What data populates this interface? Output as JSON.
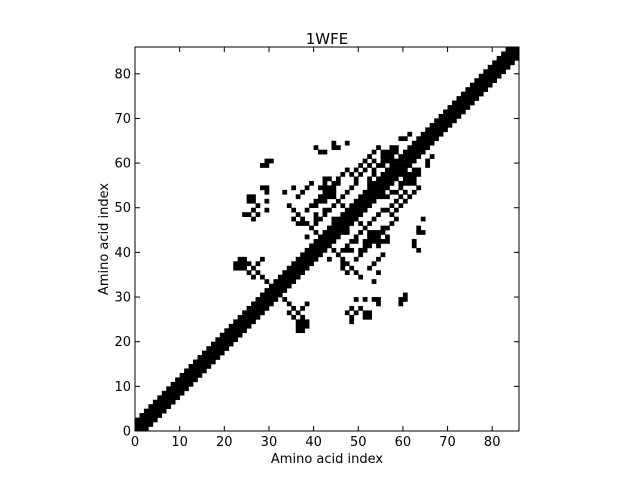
{
  "chart_data": {
    "type": "heatmap",
    "title": "1WFE",
    "xlabel": "Amino acid index",
    "ylabel": "Amino acid index",
    "xlim": [
      0,
      86
    ],
    "ylim": [
      0,
      86
    ],
    "xticks": [
      0,
      10,
      20,
      30,
      40,
      50,
      60,
      70,
      80
    ],
    "yticks": [
      0,
      10,
      20,
      30,
      40,
      50,
      60,
      70,
      80
    ],
    "grid": false,
    "cell_color": "#000000",
    "background_color": "#ffffff",
    "diagonal_band": {
      "from": 0,
      "to": 85,
      "half_width": 2
    },
    "contact_cells": [
      [
        20,
        21
      ],
      [
        21,
        22
      ],
      [
        21,
        23
      ],
      [
        22,
        22
      ],
      [
        22,
        23
      ],
      [
        23,
        24
      ],
      [
        24,
        25
      ],
      [
        25,
        26
      ],
      [
        26,
        27
      ],
      [
        27,
        28
      ],
      [
        29,
        30
      ],
      [
        30,
        31
      ],
      [
        31,
        32
      ],
      [
        32,
        30
      ],
      [
        31,
        29
      ],
      [
        30,
        28
      ],
      [
        28,
        27
      ],
      [
        33,
        29
      ],
      [
        34,
        28
      ],
      [
        35,
        27
      ],
      [
        36,
        26
      ],
      [
        37,
        25
      ],
      [
        38,
        24
      ],
      [
        38,
        23
      ],
      [
        37,
        23
      ],
      [
        36,
        22
      ],
      [
        36,
        24
      ],
      [
        35,
        25
      ],
      [
        34,
        26
      ],
      [
        25,
        35
      ],
      [
        26,
        36
      ],
      [
        27,
        37
      ],
      [
        28,
        38
      ],
      [
        23,
        36
      ],
      [
        24,
        37
      ],
      [
        24,
        38
      ],
      [
        22,
        37
      ],
      [
        24,
        48
      ],
      [
        25,
        48
      ],
      [
        26,
        49
      ],
      [
        26,
        47
      ],
      [
        27,
        48
      ],
      [
        29,
        49
      ],
      [
        30,
        60
      ],
      [
        29,
        59
      ],
      [
        29,
        53
      ],
      [
        29,
        51
      ],
      [
        39,
        45
      ],
      [
        40,
        46
      ],
      [
        41,
        47
      ],
      [
        42,
        48
      ],
      [
        43,
        49
      ],
      [
        44,
        50
      ],
      [
        45,
        51
      ],
      [
        46,
        52
      ],
      [
        47,
        53
      ],
      [
        48,
        54
      ],
      [
        49,
        55
      ],
      [
        43,
        41
      ],
      [
        44,
        40
      ],
      [
        45,
        39
      ],
      [
        46,
        38
      ],
      [
        47,
        37
      ],
      [
        48,
        36
      ],
      [
        49,
        35
      ],
      [
        50,
        34
      ],
      [
        42,
        40
      ],
      [
        41,
        39
      ],
      [
        43,
        38
      ],
      [
        38,
        49
      ],
      [
        39,
        50
      ],
      [
        40,
        51
      ],
      [
        41,
        52
      ],
      [
        42,
        53
      ],
      [
        43,
        54
      ],
      [
        44,
        55
      ],
      [
        45,
        56
      ],
      [
        46,
        57
      ],
      [
        47,
        58
      ],
      [
        50,
        40
      ],
      [
        51,
        41
      ],
      [
        52,
        42
      ],
      [
        53,
        43
      ],
      [
        54,
        44
      ],
      [
        36,
        52
      ],
      [
        37,
        53
      ],
      [
        38,
        54
      ],
      [
        48,
        57
      ],
      [
        49,
        58
      ],
      [
        50,
        59
      ],
      [
        51,
        60
      ],
      [
        52,
        61
      ],
      [
        53,
        62
      ],
      [
        54,
        63
      ],
      [
        53,
        60
      ],
      [
        52,
        59
      ],
      [
        51,
        58
      ],
      [
        50,
        57
      ],
      [
        49,
        56
      ],
      [
        55,
        59
      ],
      [
        56,
        60
      ],
      [
        57,
        61
      ],
      [
        58,
        62
      ],
      [
        59,
        60
      ],
      [
        58,
        58
      ],
      [
        57,
        57
      ],
      [
        59,
        58
      ],
      [
        60,
        57
      ],
      [
        61,
        56
      ],
      [
        62,
        55
      ],
      [
        60,
        61
      ],
      [
        61,
        62
      ],
      [
        62,
        60
      ],
      [
        63,
        61
      ],
      [
        56,
        58
      ],
      [
        55,
        57
      ],
      [
        55,
        61
      ],
      [
        56,
        62
      ],
      [
        57,
        63
      ],
      [
        58,
        59
      ],
      [
        59,
        57
      ],
      [
        60,
        56
      ],
      [
        40,
        63
      ],
      [
        41,
        62
      ],
      [
        42,
        62
      ],
      [
        44,
        63
      ],
      [
        45,
        63
      ],
      [
        41,
        54
      ],
      [
        42,
        55
      ],
      [
        42,
        56
      ],
      [
        43,
        56
      ],
      [
        39,
        55
      ],
      [
        44,
        52
      ],
      [
        45,
        51
      ],
      [
        46,
        48
      ],
      [
        47,
        44
      ],
      [
        50,
        46
      ],
      [
        49,
        50
      ],
      [
        52,
        52
      ],
      [
        53,
        52
      ],
      [
        54,
        53
      ],
      [
        55,
        52
      ],
      [
        56,
        52
      ],
      [
        57,
        53
      ],
      [
        58,
        53
      ],
      [
        59,
        54
      ],
      [
        60,
        55
      ],
      [
        51,
        26
      ],
      [
        52,
        26
      ],
      [
        51,
        25
      ],
      [
        52,
        25
      ],
      [
        50,
        27
      ],
      [
        54,
        28
      ],
      [
        54,
        29
      ],
      [
        54,
        35
      ],
      [
        53,
        33
      ],
      [
        59,
        28
      ],
      [
        59,
        29
      ],
      [
        60,
        29
      ],
      [
        46,
        38
      ],
      [
        47,
        40
      ],
      [
        48,
        40
      ],
      [
        49,
        42
      ],
      [
        51,
        42
      ],
      [
        52,
        43
      ],
      [
        53,
        44
      ],
      [
        54,
        42
      ],
      [
        55,
        45
      ],
      [
        63,
        44
      ],
      [
        64,
        44
      ],
      [
        62,
        42
      ],
      [
        64,
        47
      ],
      [
        36,
        46
      ],
      [
        37,
        46
      ],
      [
        35,
        47
      ],
      [
        66,
        61
      ],
      [
        62,
        57
      ],
      [
        63,
        57
      ],
      [
        63,
        58
      ],
      [
        65,
        59
      ],
      [
        65,
        60
      ]
    ]
  }
}
